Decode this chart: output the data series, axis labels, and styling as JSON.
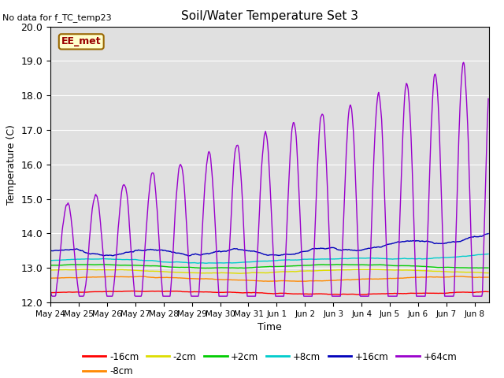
{
  "title": "Soil/Water Temperature Set 3",
  "no_data_text": "No data for f_TC_temp23",
  "ylabel": "Temperature (C)",
  "xlabel": "Time",
  "annotation": "EE_met",
  "ylim": [
    12.0,
    20.0
  ],
  "yticks": [
    12.0,
    13.0,
    14.0,
    15.0,
    16.0,
    17.0,
    18.0,
    19.0,
    20.0
  ],
  "xtick_labels": [
    "May 24",
    "May 25",
    "May 26",
    "May 27",
    "May 28",
    "May 29",
    "May 30",
    "May 31",
    "Jun 1",
    "Jun 2",
    "Jun 3",
    "Jun 4",
    "Jun 5",
    "Jun 6",
    "Jun 7",
    "Jun 8"
  ],
  "bg_color": "#e0e0e0",
  "series": [
    {
      "label": "-16cm",
      "color": "#ff0000"
    },
    {
      "label": "-8cm",
      "color": "#ff8800"
    },
    {
      "label": "-2cm",
      "color": "#dddd00"
    },
    {
      "label": "+2cm",
      "color": "#00cc00"
    },
    {
      "label": "+8cm",
      "color": "#00cccc"
    },
    {
      "label": "+16cm",
      "color": "#0000bb"
    },
    {
      "label": "+64cm",
      "color": "#9900cc"
    }
  ]
}
